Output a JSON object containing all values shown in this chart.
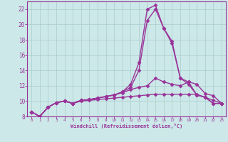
{
  "xlabel": "Windchill (Refroidissement éolien,°C)",
  "xlim": [
    -0.5,
    23.5
  ],
  "ylim": [
    8,
    23
  ],
  "xticks": [
    0,
    1,
    2,
    3,
    4,
    5,
    6,
    7,
    8,
    9,
    10,
    11,
    12,
    13,
    14,
    15,
    16,
    17,
    18,
    19,
    20,
    21,
    22,
    23
  ],
  "yticks": [
    8,
    10,
    12,
    14,
    16,
    18,
    20,
    22
  ],
  "bg_color": "#cce8e8",
  "grid_color": "#aacccc",
  "line_color": "#993399",
  "line_width": 1.0,
  "marker": "D",
  "marker_size": 2.5,
  "lines": [
    [
      8.6,
      8.0,
      9.2,
      9.8,
      10.0,
      9.7,
      10.1,
      10.2,
      10.4,
      10.6,
      10.8,
      11.2,
      12.2,
      15.0,
      22.0,
      22.5,
      19.5,
      17.5,
      13.0,
      12.5,
      10.8,
      10.5,
      9.7,
      9.7
    ],
    [
      8.6,
      8.0,
      9.2,
      9.8,
      10.0,
      9.7,
      10.1,
      10.2,
      10.4,
      10.6,
      10.8,
      11.2,
      11.8,
      14.0,
      20.5,
      22.0,
      19.5,
      17.8,
      13.0,
      12.2,
      10.8,
      10.5,
      9.7,
      9.7
    ],
    [
      8.6,
      8.0,
      9.2,
      9.8,
      10.0,
      9.7,
      10.1,
      10.2,
      10.4,
      10.6,
      10.8,
      11.1,
      11.5,
      11.8,
      12.0,
      13.0,
      12.5,
      12.2,
      12.0,
      12.5,
      12.2,
      11.0,
      10.7,
      9.7
    ],
    [
      8.6,
      8.0,
      9.2,
      9.8,
      10.0,
      9.7,
      10.0,
      10.1,
      10.2,
      10.3,
      10.4,
      10.5,
      10.6,
      10.7,
      10.8,
      10.9,
      10.9,
      10.9,
      10.9,
      10.9,
      10.9,
      10.5,
      10.1,
      9.7
    ]
  ]
}
